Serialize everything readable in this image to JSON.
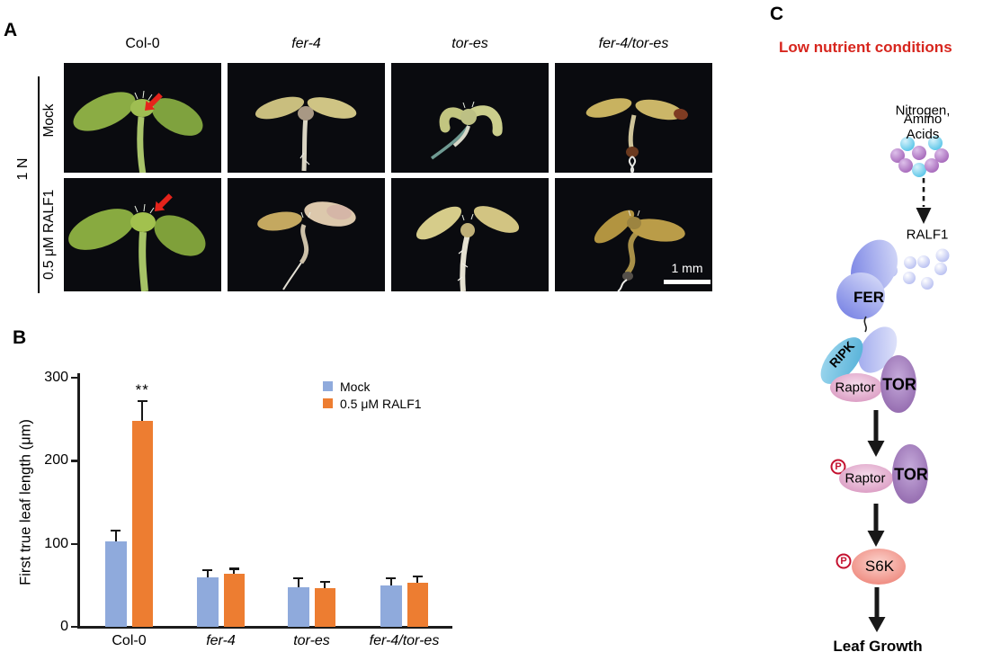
{
  "panel_a": {
    "label": "A",
    "columns": [
      "Col-0",
      "fer-4",
      "tor-es",
      "fer-4/tor-es"
    ],
    "columns_italic": [
      false,
      true,
      true,
      true
    ],
    "condition_label": "1 N",
    "rows": [
      "Mock",
      "0.5 μM RALF1"
    ],
    "scale_bar_label": "1 mm"
  },
  "chart_data": {
    "type": "bar",
    "panel_label": "B",
    "categories": [
      "Col-0",
      "fer-4",
      "tor-es",
      "fer-4/tor-es"
    ],
    "categories_italic": [
      false,
      true,
      true,
      true
    ],
    "series": [
      {
        "name": "Mock",
        "color": "#8FAADC",
        "values": [
          103,
          60,
          48,
          50
        ],
        "errors": [
          13,
          8,
          11,
          9
        ]
      },
      {
        "name": "0.5 μM RALF1",
        "color": "#ED7D31",
        "values": [
          248,
          64,
          47,
          53
        ],
        "errors": [
          24,
          6,
          7,
          8
        ]
      }
    ],
    "ylabel": "First true leaf length (μm)",
    "ylim": [
      0,
      300
    ],
    "yticks": [
      0,
      100,
      200,
      300
    ],
    "significance": {
      "category_index": 0,
      "series_index": 1,
      "label": "**"
    },
    "legend_position": "top-right-inside",
    "grid": false
  },
  "panel_c": {
    "label": "C",
    "title": "Low nutrient conditions",
    "title_color": "#D7261E",
    "nutrients_line1": "Nitrogen,",
    "nutrients_line2": "Amino Acids",
    "ralf1": "RALF1",
    "fer": "FER",
    "ripk": "RIPK",
    "raptor": "Raptor",
    "tor": "TOR",
    "phospho": "P",
    "s6k": "S6K",
    "outcome": "Leaf Growth",
    "colors": {
      "nutrient_cyan": "#4FC0E6",
      "nutrient_purple": "#A05FB5",
      "receptor_blue": "#7B85E8",
      "ripk_blue": "#63B9DD",
      "raptor_pink": "#D893BE",
      "tor_purple": "#8A5FA8",
      "s6k_red": "#EE7E72",
      "phospho_red": "#C41230"
    }
  }
}
